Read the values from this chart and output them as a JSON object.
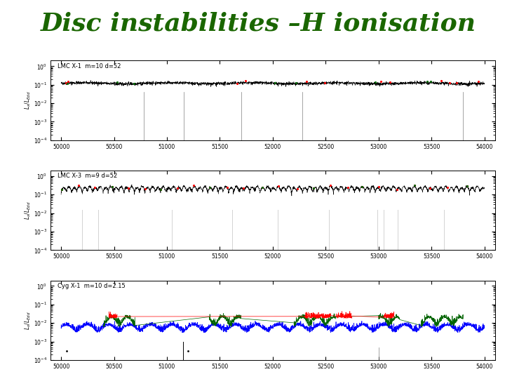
{
  "title": "Disc instabilities –H ionisation",
  "title_color": "#1a6600",
  "title_fontsize": 26,
  "title_weight": "bold",
  "bg_color": "#ffffff",
  "panel1_label": "LMC X-1  m=10 d=52",
  "panel2_label": "LMC X-3  m=9 d=52",
  "panel3_label": "Cyg X-1  m=10 d=2.15",
  "xmin": 49900,
  "xmax": 54100,
  "xticks": [
    50000,
    50500,
    51000,
    51500,
    52000,
    52500,
    53000,
    53500,
    54000
  ],
  "seed": 42,
  "panel_bg": "#ffffff",
  "panel_border": "#000000"
}
